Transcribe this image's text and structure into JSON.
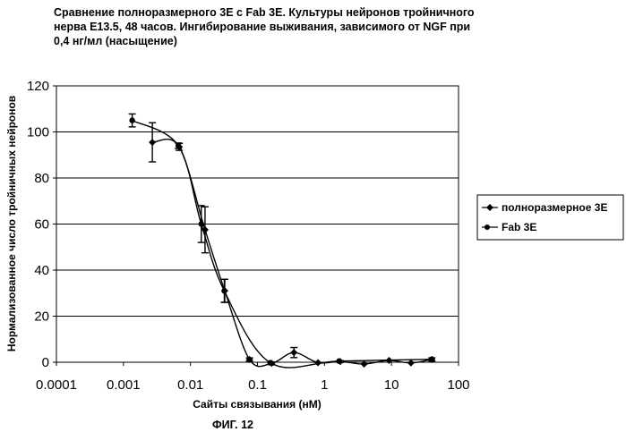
{
  "figure": {
    "title_lines": [
      "Сравнение полноразмерного 3E с Fab 3E. Культуры нейронов тройничного",
      "нерва E13.5, 48 часов. Ингибирование выживания, зависимого от NGF при",
      "0,4 нг/мл (насыщение)"
    ],
    "caption": "ФИГ. 12"
  },
  "chart_data": {
    "type": "scatter",
    "xscale": "log",
    "xlim": [
      0.0001,
      100
    ],
    "ylim": [
      0,
      120
    ],
    "xticks": [
      0.0001,
      0.001,
      0.01,
      0.1,
      1,
      10,
      100
    ],
    "xtick_labels": [
      "0.0001",
      "0.001",
      "0.01",
      "0.1",
      "1",
      "10",
      "100"
    ],
    "yticks": [
      0,
      20,
      40,
      60,
      80,
      100,
      120
    ],
    "ytick_labels": [
      "0",
      "20",
      "40",
      "60",
      "80",
      "100",
      "120"
    ],
    "xlabel": "Сайты связывания (нМ)",
    "ylabel": "Нормализованное число тройничных нейронов",
    "grid": "horizontal",
    "legend_position": "right",
    "line_color": "#000000",
    "series": [
      {
        "name": "полноразмерное 3E",
        "marker": "diamond",
        "x": [
          0.0027,
          0.0068,
          0.0165,
          0.0325,
          0.076,
          0.163,
          0.35,
          0.8,
          1.72,
          3.9,
          9.2,
          19.5,
          40
        ],
        "y": [
          95.5,
          93.5,
          57.5,
          31,
          1.2,
          -0.5,
          4.2,
          -0.2,
          0.3,
          -0.8,
          0.8,
          -0.3,
          1.2
        ],
        "err": [
          8.5,
          1.5,
          10,
          5,
          0.7,
          0.6,
          2.2,
          0,
          0.4,
          0,
          0,
          0,
          0.7
        ]
      },
      {
        "name": "Fab 3E",
        "marker": "circle",
        "x": [
          0.00135,
          0.0066,
          0.0145,
          0.032,
          0.155,
          1.65,
          40
        ],
        "y": [
          105,
          94,
          60,
          31,
          -0.2,
          0.5,
          1.3
        ],
        "err": [
          2.8,
          1.2,
          8,
          5,
          0,
          0,
          0
        ]
      }
    ]
  }
}
